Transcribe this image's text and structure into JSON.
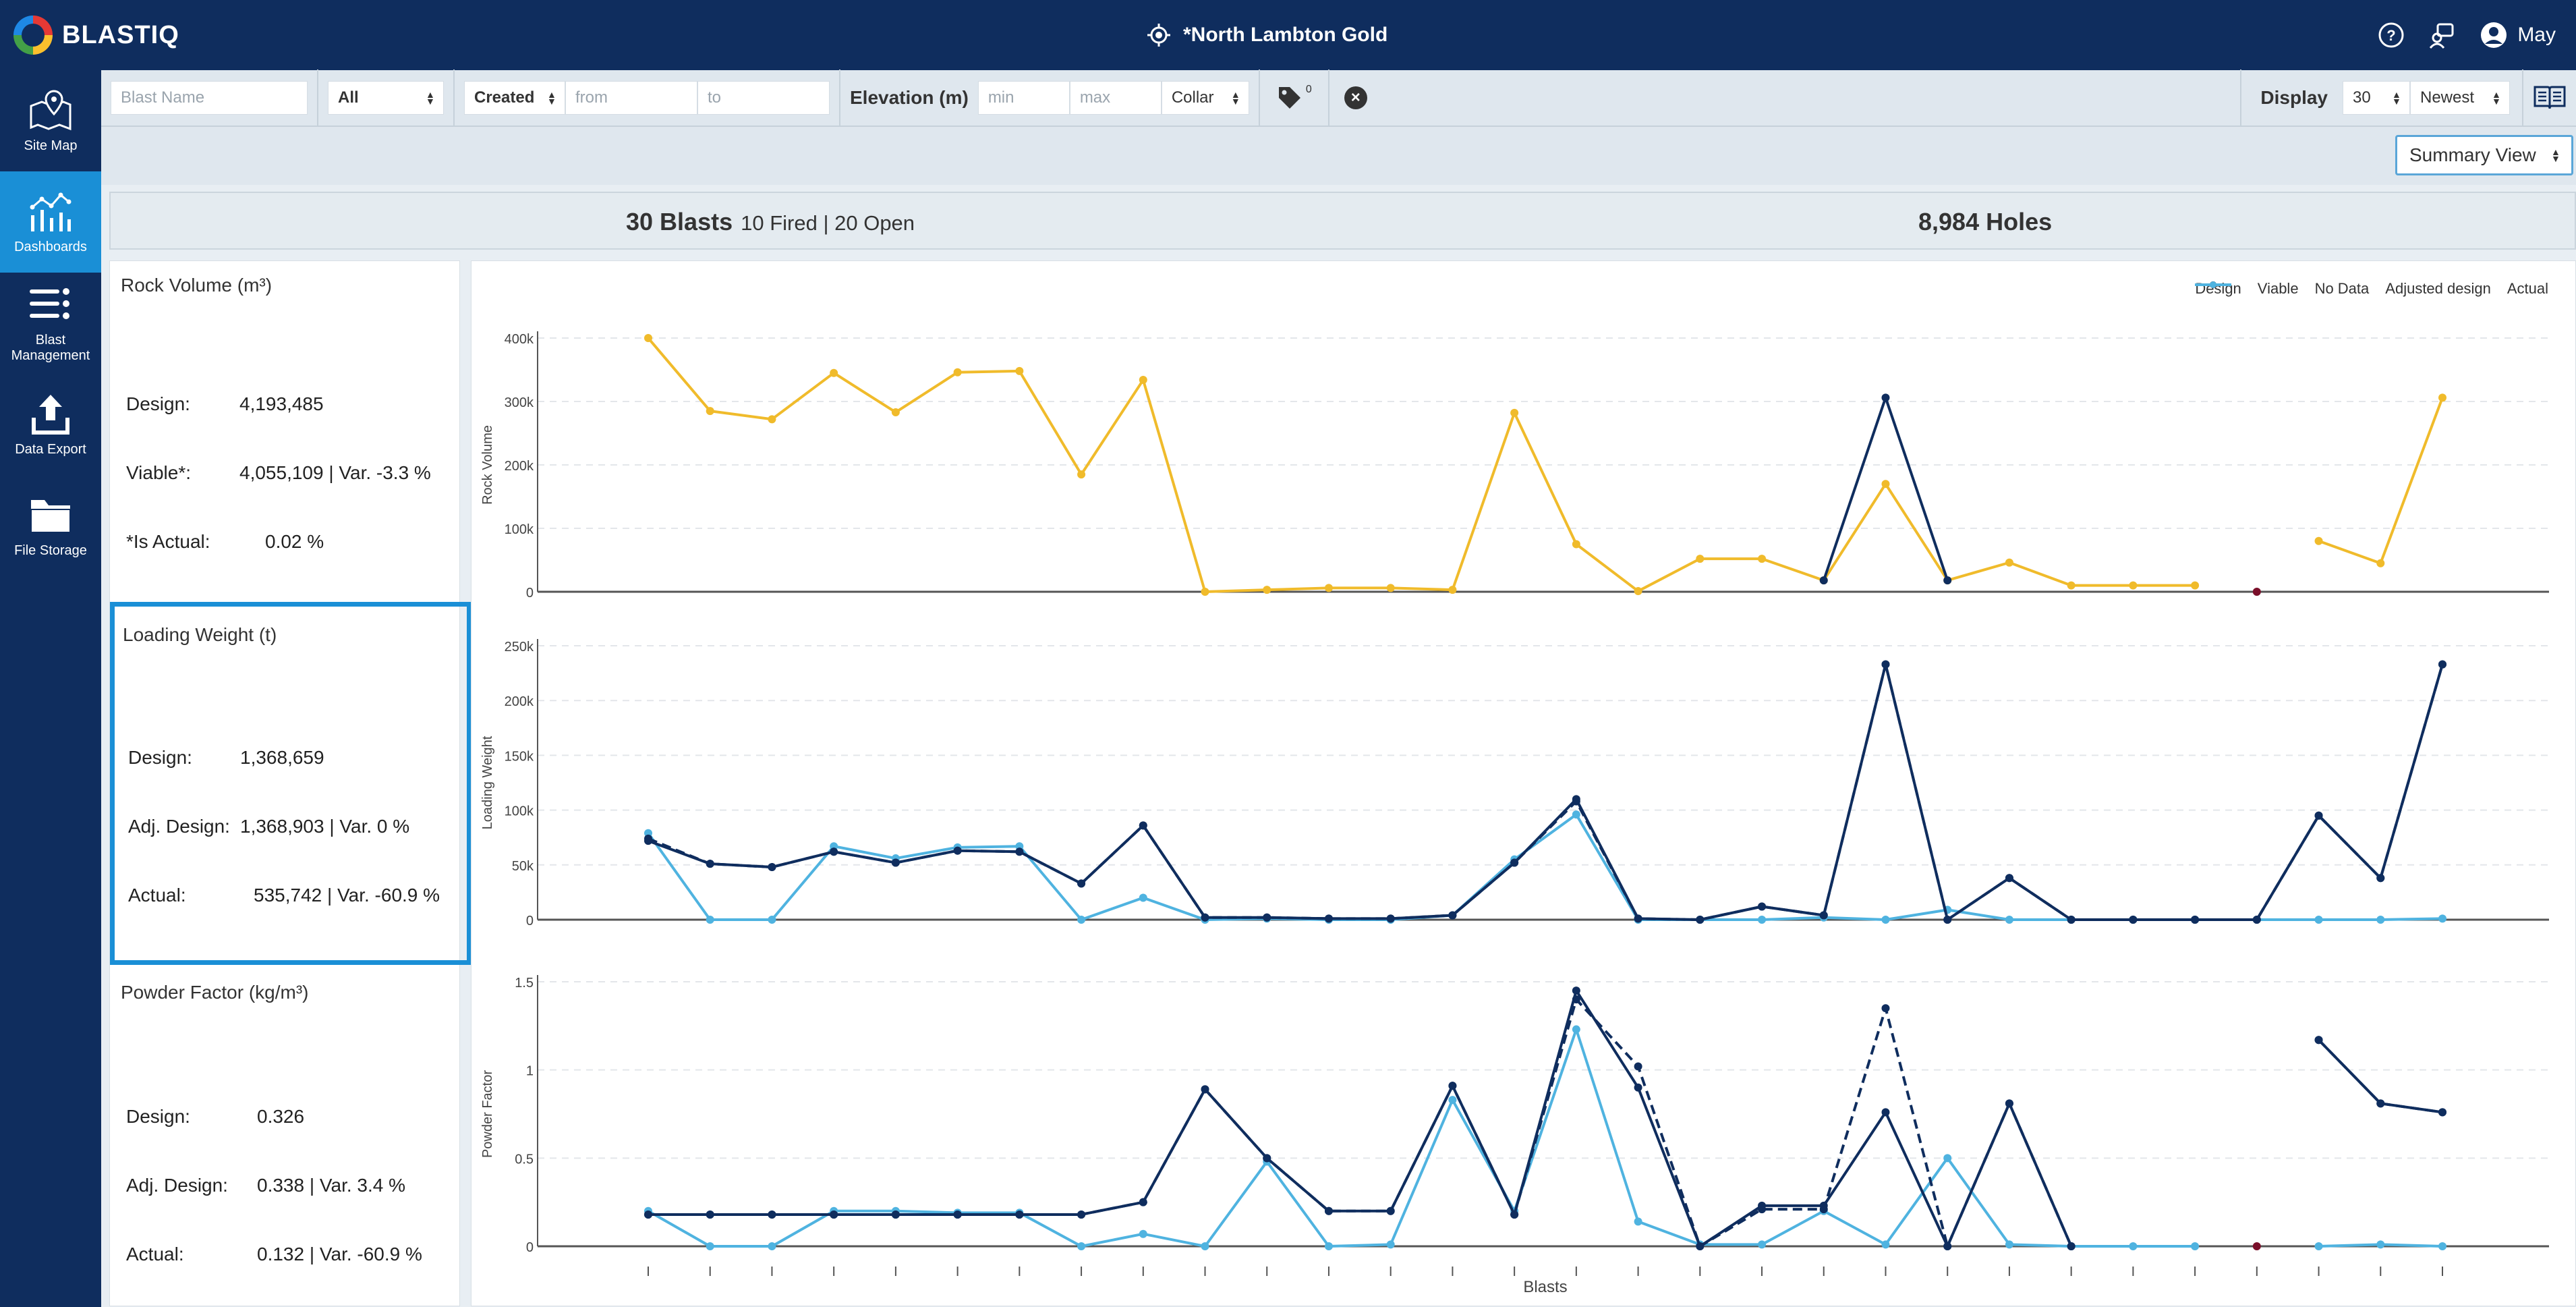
{
  "app": {
    "logo_text": "BLAST",
    "logo_suffix": "IQ"
  },
  "header": {
    "site": "*North Lambton Gold",
    "user": "May"
  },
  "sidebar": {
    "items": [
      {
        "label": "Site Map",
        "icon": "map-icon"
      },
      {
        "label": "Dashboards",
        "icon": "dashboard-icon"
      },
      {
        "label": "Blast Management",
        "icon": "list-icon"
      },
      {
        "label": "Data Export",
        "icon": "upload-icon"
      },
      {
        "label": "File Storage",
        "icon": "folder-icon"
      }
    ]
  },
  "filters": {
    "blast_name_placeholder": "Blast Name",
    "status_select": "All",
    "date_type_select": "Created",
    "from_placeholder": "from",
    "to_placeholder": "to",
    "elevation_label": "Elevation (m)",
    "min_placeholder": "min",
    "max_placeholder": "max",
    "elevation_type_select": "Collar",
    "tag_count": "0",
    "display_label": "Display",
    "display_count": "30",
    "sort_select": "Newest"
  },
  "view_select": "Summary View",
  "stats": {
    "blasts": "30 Blasts",
    "blasts_detail": "10 Fired | 20 Open",
    "holes": "8,984 Holes"
  },
  "cards": {
    "rock_volume": {
      "title": "Rock Volume (m³)",
      "rows": [
        {
          "label": "Design:",
          "value": "4,193,485"
        },
        {
          "label": "Viable*:",
          "value": "4,055,109  |  Var. -3.3 %"
        },
        {
          "label": "*Is Actual:",
          "value": "0.02 %"
        }
      ]
    },
    "loading_weight": {
      "title": "Loading Weight (t)",
      "rows": [
        {
          "label": "Design:",
          "value": "1,368,659"
        },
        {
          "label": "Adj. Design:",
          "value": "1,368,903  |  Var. 0 %"
        },
        {
          "label": "Actual:",
          "value": "535,742  |  Var. -60.9 %"
        }
      ]
    },
    "powder_factor": {
      "title": "Powder Factor (kg/m³)",
      "rows": [
        {
          "label": "Design:",
          "value": "0.326"
        },
        {
          "label": "Adj. Design:",
          "value": "0.338  |  Var. 3.4 %"
        },
        {
          "label": "Actual:",
          "value": "0.132  |  Var. -60.9 %"
        }
      ]
    }
  },
  "colors": {
    "design": "#0f2d5e",
    "viable": "#f0bb2b",
    "no_data": "#7a0f2a",
    "adjusted": "#0f2d5e",
    "actual": "#4fb3e0"
  },
  "chart_data": [
    {
      "type": "line",
      "ylabel": "Rock Volume",
      "xlabel": "",
      "ylim": [
        0,
        400000
      ],
      "yticks": [
        "0",
        "100k",
        "200k",
        "300k",
        "400k"
      ],
      "series": [
        {
          "name": "Viable",
          "values": [
            400000,
            285000,
            272000,
            345000,
            283000,
            346000,
            348000,
            185000,
            334000,
            0,
            3000,
            6000,
            6000,
            3000,
            282000,
            75000,
            1000,
            52000,
            52000,
            18000,
            170000,
            18000,
            46000,
            10000,
            10000,
            10000,
            null,
            80000,
            45000,
            306000
          ]
        },
        {
          "name": "Design",
          "values": [
            null,
            null,
            null,
            null,
            null,
            null,
            null,
            null,
            null,
            null,
            null,
            null,
            null,
            null,
            null,
            null,
            null,
            null,
            null,
            18000,
            306000,
            18000,
            null,
            null,
            null,
            null,
            null,
            null,
            null,
            null
          ]
        },
        {
          "name": "No Data",
          "values": [
            null,
            null,
            null,
            null,
            null,
            null,
            null,
            null,
            null,
            null,
            null,
            null,
            null,
            null,
            null,
            null,
            null,
            null,
            null,
            null,
            null,
            null,
            null,
            null,
            null,
            null,
            0,
            null,
            null,
            null
          ]
        }
      ]
    },
    {
      "type": "line",
      "ylabel": "Loading Weight",
      "xlabel": "",
      "ylim": [
        0,
        250000
      ],
      "yticks": [
        "0",
        "50k",
        "100k",
        "150k",
        "200k",
        "250k"
      ],
      "series": [
        {
          "name": "Design",
          "values": [
            72000,
            51000,
            48000,
            62000,
            52000,
            63000,
            62000,
            33000,
            86000,
            2000,
            2000,
            1000,
            1000,
            4000,
            52000,
            110000,
            1000,
            0,
            12000,
            4000,
            233000,
            0,
            38000,
            0,
            0,
            0,
            0,
            95000,
            38000,
            233000
          ]
        },
        {
          "name": "Adjusted design",
          "values": [
            74000,
            51000,
            48000,
            62000,
            52000,
            63000,
            62000,
            33000,
            86000,
            2000,
            2000,
            1000,
            1000,
            4000,
            52000,
            108000,
            1000,
            0,
            12000,
            4000,
            233000,
            0,
            38000,
            0,
            0,
            0,
            0,
            95000,
            38000,
            233000
          ]
        },
        {
          "name": "Actual",
          "values": [
            79000,
            0,
            0,
            67000,
            56000,
            66000,
            67000,
            0,
            20000,
            0,
            1000,
            0,
            0,
            4000,
            55000,
            96000,
            0,
            0,
            0,
            2000,
            0,
            9000,
            0,
            0,
            0,
            0,
            0,
            0,
            0,
            1000
          ]
        }
      ]
    },
    {
      "type": "line",
      "ylabel": "Powder Factor",
      "xlabel": "Blasts",
      "ylim": [
        0,
        1.5
      ],
      "yticks": [
        "0",
        "0.5",
        "1",
        "1.5"
      ],
      "series": [
        {
          "name": "Design",
          "values": [
            0.18,
            0.18,
            0.18,
            0.18,
            0.18,
            0.18,
            0.18,
            0.18,
            0.25,
            0.89,
            0.5,
            0.2,
            0.2,
            0.91,
            0.18,
            1.45,
            0.9,
            0.0,
            0.23,
            0.23,
            0.76,
            0.0,
            0.81,
            0.0,
            null,
            null,
            null,
            1.17,
            0.81,
            0.76
          ]
        },
        {
          "name": "Adjusted design",
          "values": [
            0.18,
            0.18,
            0.18,
            0.18,
            0.18,
            0.18,
            0.18,
            0.18,
            0.25,
            0.89,
            0.5,
            0.2,
            0.2,
            0.91,
            0.18,
            1.4,
            1.02,
            0.0,
            0.21,
            0.21,
            1.35,
            0.0,
            0.81,
            0.0,
            null,
            null,
            null,
            1.17,
            0.81,
            0.76
          ]
        },
        {
          "name": "Actual",
          "values": [
            0.2,
            0.0,
            0.0,
            0.2,
            0.2,
            0.19,
            0.19,
            0.0,
            0.07,
            0.0,
            0.48,
            0.0,
            0.01,
            0.83,
            0.2,
            1.23,
            0.14,
            0.01,
            0.01,
            0.2,
            0.01,
            0.5,
            0.01,
            0.0,
            0.0,
            0.0,
            null,
            0.0,
            0.01,
            0.0
          ]
        },
        {
          "name": "No Data",
          "values": [
            null,
            null,
            null,
            null,
            null,
            null,
            null,
            null,
            null,
            null,
            null,
            null,
            null,
            null,
            null,
            null,
            null,
            null,
            null,
            null,
            null,
            null,
            null,
            null,
            null,
            null,
            0,
            null,
            null,
            null
          ]
        }
      ]
    }
  ],
  "legend": [
    "Design",
    "Viable",
    "No Data",
    "Adjusted design",
    "Actual"
  ]
}
